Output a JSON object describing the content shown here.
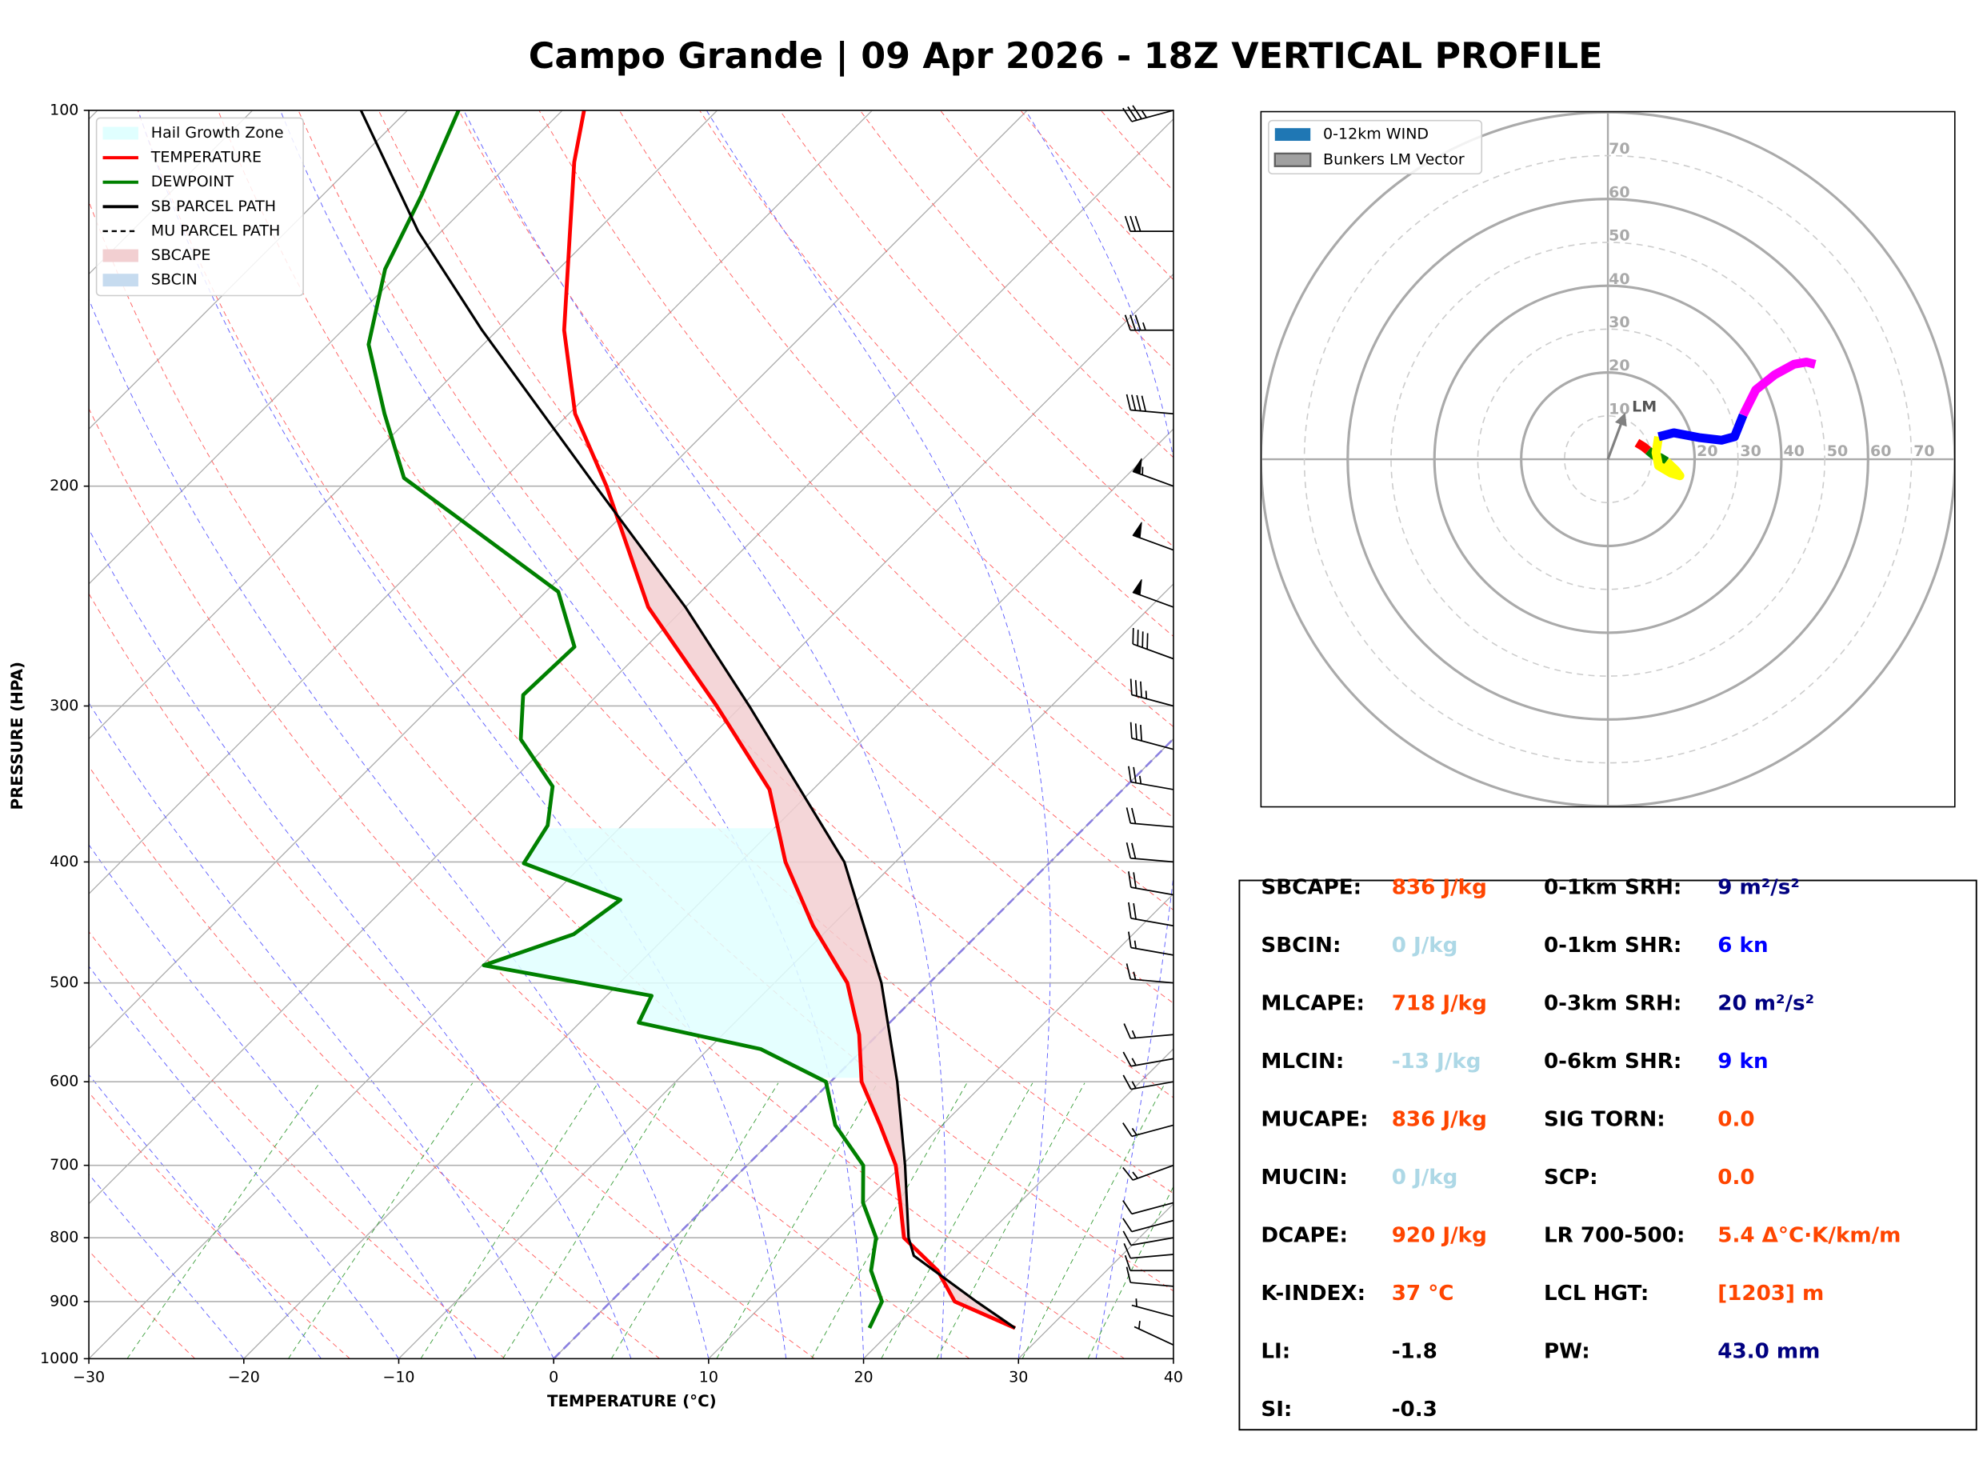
{
  "title": "Campo Grande | 09 Apr 2026 - 18Z VERTICAL PROFILE",
  "chart_data": [
    {
      "type": "skewt",
      "xlabel": "TEMPERATURE (°C)",
      "ylabel": "PRESSURE (HPA)",
      "xlim": [
        -30,
        40
      ],
      "ylim": [
        1000,
        100
      ],
      "log_y": true,
      "grid": true,
      "legend": "upper left",
      "xticks": [
        {
          "value": -30,
          "label": "−30"
        },
        {
          "value": -20,
          "label": "−20"
        },
        {
          "value": -10,
          "label": "−10"
        },
        0,
        10,
        20,
        30,
        40
      ],
      "yticks": [
        100,
        200,
        300,
        400,
        500,
        600,
        700,
        800,
        900,
        1000
      ],
      "series": [
        {
          "name": "TEMPERATURE",
          "color": "#ff0000",
          "pressure": [
            945,
            900,
            850,
            800,
            750,
            700,
            650,
            600,
            550,
            500,
            450,
            400,
            350,
            300,
            250,
            200,
            175,
            150,
            125,
            110,
            100
          ],
          "values": [
            27.8,
            22.2,
            19.1,
            14.8,
            12.3,
            9.6,
            6.0,
            2.0,
            -1.2,
            -5.3,
            -11.2,
            -17.1,
            -22.8,
            -31.6,
            -42.4,
            -52.9,
            -59.6,
            -65.7,
            -71.7,
            -75.9,
            -78.6
          ]
        },
        {
          "name": "DEWPOINT",
          "color": "#008000",
          "pressure": [
            945,
            900,
            850,
            800,
            750,
            700,
            650,
            600,
            565,
            538,
            512,
            484,
            457,
            429,
            401,
            374,
            348,
            319,
            294,
            269,
            243,
            197,
            175,
            154,
            134,
            117,
            100
          ],
          "values": [
            18.4,
            17.5,
            14.8,
            13.0,
            9.9,
            7.5,
            3.1,
            -0.3,
            -6.6,
            -16.2,
            -17.1,
            -29.9,
            -26.1,
            -25.3,
            -33.9,
            -34.8,
            -37.0,
            -42.1,
            -44.8,
            -44.6,
            -49.2,
            -66.5,
            -71.9,
            -77.4,
            -81.2,
            -83.6,
            -86.7
          ]
        },
        {
          "name": "SB PARCEL PATH",
          "color": "#000000",
          "pressure": [
            945,
            900,
            827,
            800,
            700,
            600,
            500,
            400,
            300,
            250,
            200,
            150,
            125,
            100
          ],
          "values": [
            27.8,
            23.6,
            16.6,
            15.1,
            10.2,
            4.3,
            -3.1,
            -13.3,
            -29.5,
            -40.0,
            -53.6,
            -71.0,
            -81.5,
            -93.0
          ]
        },
        {
          "name": "MU PARCEL PATH",
          "color": "#000000",
          "linestyle": "dashed",
          "pressure": [
            945,
            900,
            827,
            800,
            700,
            600,
            500,
            400,
            300,
            250,
            200,
            150,
            125,
            100
          ],
          "values": [
            27.8,
            23.6,
            16.6,
            15.1,
            10.2,
            4.3,
            -3.1,
            -13.3,
            -29.5,
            -40.0,
            -53.6,
            -71.0,
            -81.5,
            -93.0
          ]
        }
      ],
      "fills": [
        {
          "name": "Hail Growth Zone",
          "kind": "hail",
          "color": "#e0ffff",
          "pressure_range": [
            600,
            373
          ]
        },
        {
          "name": "SBCAPE",
          "kind": "cape",
          "color": "#f2cfd1"
        },
        {
          "name": "SBCIN",
          "kind": "cin",
          "color": "#c6dbef"
        }
      ],
      "wind_barbs": {
        "pressure": [
          975,
          925,
          875,
          850,
          825,
          800,
          775,
          750,
          700,
          650,
          600,
          575,
          550,
          500,
          475,
          450,
          425,
          400,
          375,
          350,
          325,
          300,
          275,
          250,
          225,
          200,
          175,
          150,
          125,
          100
        ],
        "speed": [
          5,
          5,
          10,
          10,
          10,
          10,
          10,
          10,
          15,
          15,
          15,
          15,
          15,
          15,
          15,
          20,
          20,
          20,
          20,
          25,
          30,
          35,
          40,
          50,
          50,
          55,
          40,
          35,
          30,
          35
        ],
        "direction": [
          245,
          255,
          265,
          270,
          275,
          280,
          285,
          285,
          290,
          285,
          280,
          280,
          275,
          265,
          260,
          260,
          260,
          265,
          265,
          260,
          255,
          255,
          250,
          250,
          250,
          250,
          265,
          270,
          270,
          285
        ]
      }
    },
    {
      "type": "hodograph",
      "lim": 80,
      "rings": [
        10,
        20,
        30,
        40,
        50,
        60,
        70
      ],
      "legend": [
        {
          "name": "0-12km WIND",
          "color": "#1f77b4"
        },
        {
          "name": "Bunkers LM Vector",
          "color": "#a0a0a0"
        }
      ],
      "segments": [
        {
          "color": "#ff0000",
          "u": [
            6.7,
            8.2,
            9.3
          ],
          "v": [
            3.8,
            2.9,
            2.0
          ]
        },
        {
          "color": "#008000",
          "u": [
            9.3,
            10.5,
            12.2,
            13.5
          ],
          "v": [
            2.0,
            1.0,
            0.3,
            -0.5
          ]
        },
        {
          "color": "#ffff00",
          "u": [
            13.5,
            15.7,
            16.6,
            14.6,
            11.7,
            11.1,
            11.7
          ],
          "v": [
            -0.5,
            -2.6,
            -3.8,
            -3.2,
            -1.5,
            1.5,
            5.2
          ]
        },
        {
          "color": "#0000ff",
          "u": [
            11.7,
            15.2,
            21.0,
            26.2,
            29.2,
            31.2
          ],
          "v": [
            5.2,
            6.1,
            5.0,
            4.4,
            5.2,
            10.2
          ]
        },
        {
          "color": "#ff00ff",
          "u": [
            31.2,
            34.1,
            38.5,
            42.9,
            45.8,
            47.8
          ],
          "v": [
            10.2,
            16.0,
            19.5,
            21.9,
            22.4,
            21.9
          ]
        }
      ],
      "bunkers_lm": {
        "label": "LM",
        "u": 3.8,
        "v": 10.2
      }
    }
  ],
  "indices": {
    "left": [
      {
        "label": "SBCAPE:",
        "value": "836 J/kg",
        "color": "#ff4500"
      },
      {
        "label": "SBCIN:",
        "value": "0 J/kg",
        "color": "#add8e6"
      },
      {
        "label": "MLCAPE:",
        "value": "718 J/kg",
        "color": "#ff4500"
      },
      {
        "label": "MLCIN:",
        "value": "-13 J/kg",
        "color": "#add8e6"
      },
      {
        "label": "MUCAPE:",
        "value": "836 J/kg",
        "color": "#ff4500"
      },
      {
        "label": "MUCIN:",
        "value": "0 J/kg",
        "color": "#add8e6"
      },
      {
        "label": "DCAPE:",
        "value": "920 J/kg",
        "color": "#ff4500"
      },
      {
        "label": "K-INDEX:",
        "value": "37 °C",
        "color": "#ff4500"
      },
      {
        "label": "LI:",
        "value": "-1.8",
        "color": "#000000"
      },
      {
        "label": "SI:",
        "value": "-0.3",
        "color": "#000000"
      }
    ],
    "right": [
      {
        "label": "0-1km SRH:",
        "value": "9 m²/s²",
        "color": "#000080"
      },
      {
        "label": "0-1km SHR:",
        "value": "6 kn",
        "color": "#0000ff"
      },
      {
        "label": "0-3km SRH:",
        "value": "20 m²/s²",
        "color": "#000080"
      },
      {
        "label": "0-6km SHR:",
        "value": "9 kn",
        "color": "#0000ff"
      },
      {
        "label": "SIG TORN:",
        "value": "0.0",
        "color": "#ff4500"
      },
      {
        "label": "SCP:",
        "value": "0.0",
        "color": "#ff4500"
      },
      {
        "label": "LR 700-500:",
        "value": "5.4 Δ°C·K/km/m",
        "color": "#ff4500"
      },
      {
        "label": "LCL HGT:",
        "value": "[1203] m",
        "color": "#ff4500"
      },
      {
        "label": "PW:",
        "value": "43.0 mm",
        "color": "#000080"
      }
    ]
  }
}
